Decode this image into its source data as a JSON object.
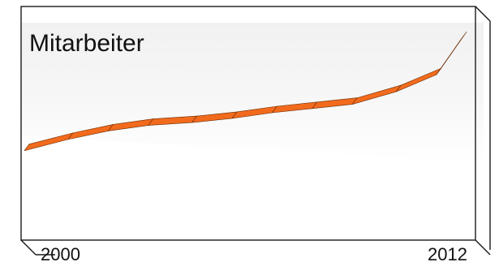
{
  "chart_data": {
    "type": "line",
    "title": "Mitarbeiter",
    "x_tick_labels": [
      "2000",
      "2012"
    ],
    "xlim": [
      2000,
      2012
    ],
    "ylim": [
      0,
      100
    ],
    "x": [
      2000,
      2001.2,
      2002.3,
      2003.4,
      2004.6,
      2005.7,
      2006.8,
      2007.9,
      2009.0,
      2010.2,
      2011.3,
      2012
    ],
    "values": [
      10,
      18,
      24,
      28,
      30,
      33,
      37,
      40,
      43,
      52,
      64,
      90
    ],
    "grid": false,
    "legend": "none",
    "colors": {
      "series": "#f26b1d",
      "frame": "#1a1a1a",
      "plot_background": "#f5f5f5",
      "text": "#111111"
    }
  }
}
